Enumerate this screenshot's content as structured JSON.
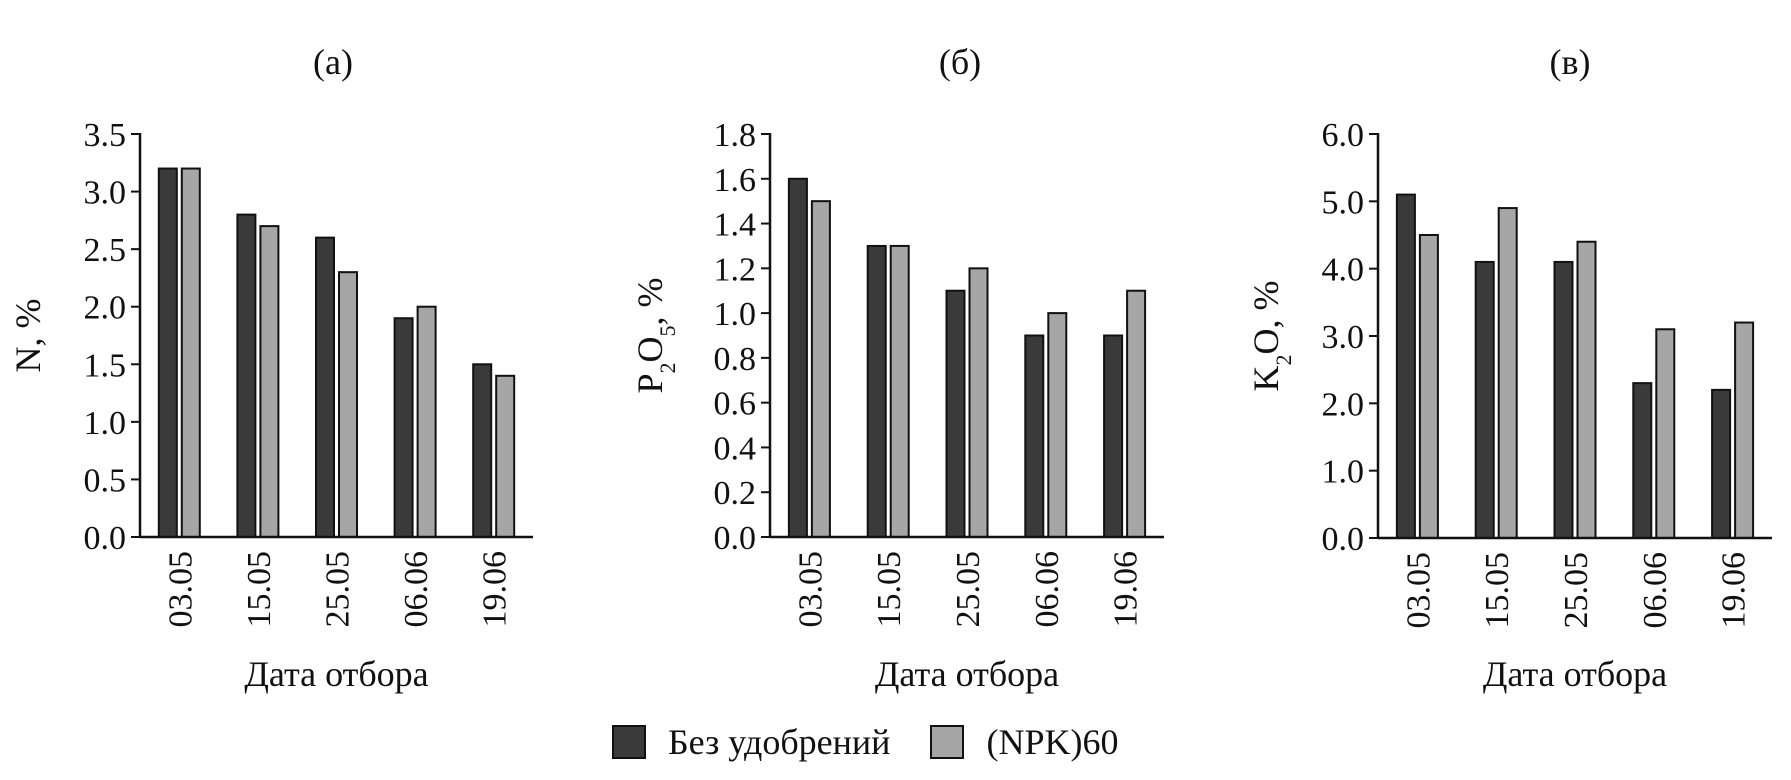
{
  "legend": {
    "position": "bottom-center",
    "items": [
      {
        "label": "Без удобрений",
        "color": "#3a3a3a"
      },
      {
        "label": "(NPK)60",
        "color": "#a6a6a6"
      }
    ]
  },
  "chart_data": [
    {
      "type": "bar",
      "panel": "(а)",
      "categories": [
        "03.05",
        "15.05",
        "25.05",
        "06.06",
        "19.06"
      ],
      "series": [
        {
          "name": "Без удобрений",
          "values": [
            3.2,
            2.8,
            2.6,
            1.9,
            1.5
          ]
        },
        {
          "name": "(NPK)60",
          "values": [
            3.2,
            2.7,
            2.3,
            2.0,
            1.4
          ]
        }
      ],
      "xlabel": "Дата отбора",
      "ylabel": {
        "base": "N",
        "sub": "",
        "base2": "",
        "sub2": "",
        "suffix": ", %"
      },
      "ylim": [
        0,
        3.5
      ],
      "yticks": [
        "0.0",
        "0.5",
        "1.0",
        "1.5",
        "2.0",
        "2.5",
        "3.0",
        "3.5"
      ],
      "grid": false
    },
    {
      "type": "bar",
      "panel": "(б)",
      "categories": [
        "03.05",
        "15.05",
        "25.05",
        "06.06",
        "19.06"
      ],
      "series": [
        {
          "name": "Без удобрений",
          "values": [
            1.6,
            1.3,
            1.1,
            0.9,
            0.9
          ]
        },
        {
          "name": "(NPK)60",
          "values": [
            1.5,
            1.3,
            1.2,
            1.0,
            1.1
          ]
        }
      ],
      "xlabel": "Дата отбора",
      "ylabel": {
        "base": "P",
        "sub": "2",
        "base2": "O",
        "sub2": "5",
        "suffix": ", %"
      },
      "ylim": [
        0,
        1.8
      ],
      "yticks": [
        "0.0",
        "0.2",
        "0.4",
        "0.6",
        "0.8",
        "1.0",
        "1.2",
        "1.4",
        "1.6",
        "1.8"
      ],
      "grid": false
    },
    {
      "type": "bar",
      "panel": "(в)",
      "categories": [
        "03.05",
        "15.05",
        "25.05",
        "06.06",
        "19.06"
      ],
      "series": [
        {
          "name": "Без удобрений",
          "values": [
            5.1,
            4.1,
            4.1,
            2.3,
            2.2
          ]
        },
        {
          "name": "(NPK)60",
          "values": [
            4.5,
            4.9,
            4.4,
            3.1,
            3.2
          ]
        }
      ],
      "xlabel": "Дата отбора",
      "ylabel": {
        "base": "K",
        "sub": "2",
        "base2": "O",
        "sub2": "",
        "suffix": ", %"
      },
      "ylim": [
        0,
        6.0
      ],
      "yticks": [
        "0.0",
        "1.0",
        "2.0",
        "3.0",
        "4.0",
        "5.0",
        "6.0"
      ],
      "grid": false
    }
  ]
}
